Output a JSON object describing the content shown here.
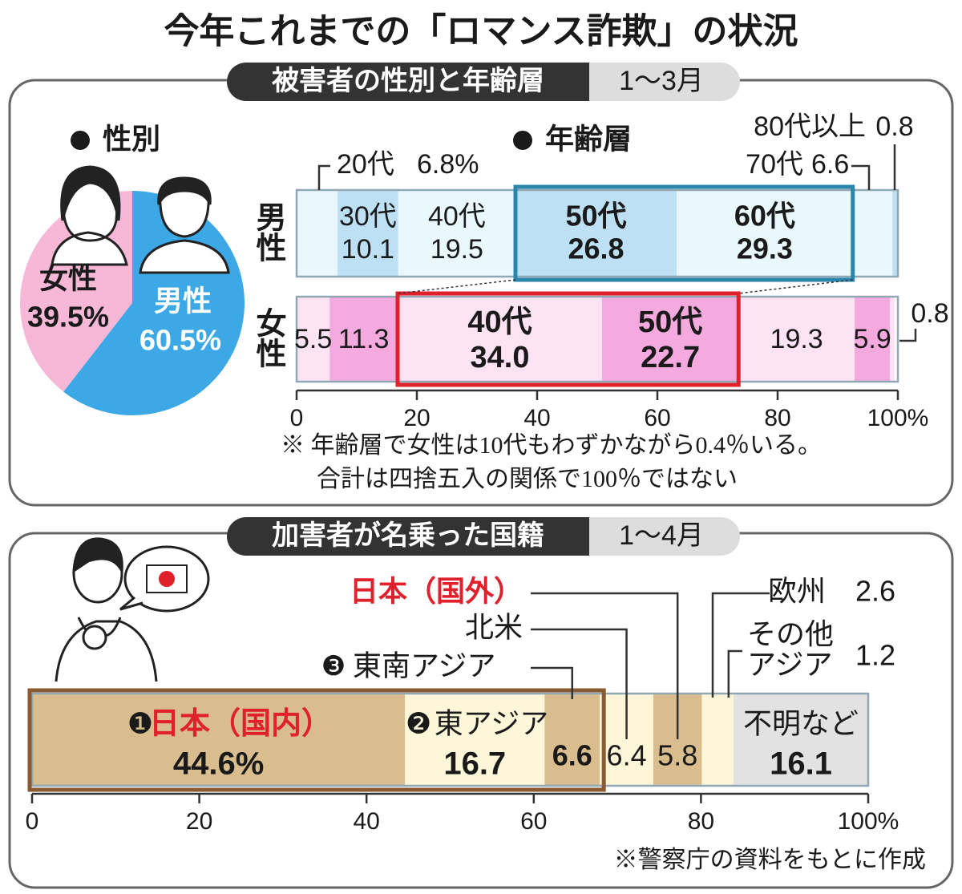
{
  "title": "今年これまでの「ロマンス詐欺」の状況",
  "chart_data": [
    {
      "type": "pie",
      "section_title": "被害者の性別と年齢層",
      "period": "1～3月",
      "subtitle": "性別",
      "categories": [
        "女性",
        "男性"
      ],
      "values": [
        39.5,
        60.5
      ],
      "value_labels": [
        "39.5%",
        "60.5%"
      ],
      "colors": [
        "#f6b8d6",
        "#3da8e6"
      ]
    },
    {
      "type": "stacked_bar",
      "subtitle": "年齢層",
      "categories": [
        "20代",
        "30代",
        "40代",
        "50代",
        "60代",
        "70代",
        "80代以上"
      ],
      "series": [
        {
          "name": "男性",
          "values": [
            6.8,
            10.1,
            19.5,
            26.8,
            29.3,
            6.6,
            0.8
          ],
          "value_labels": [
            "6.8%",
            "10.1",
            "19.5",
            "26.8",
            "29.3",
            "6.6",
            "0.8"
          ],
          "colors": [
            "#e9f8fc",
            "#bde0f5",
            "#e9f8fc",
            "#bde0f5",
            "#e9f8fc",
            "#e9f8fc",
            "#bde0f5"
          ]
        },
        {
          "name": "女性",
          "values": [
            5.5,
            11.3,
            34.0,
            22.7,
            19.3,
            5.9,
            0.8
          ],
          "value_labels": [
            "5.5",
            "11.3",
            "34.0",
            "22.7",
            "19.3",
            "5.9",
            "0.8"
          ],
          "colors": [
            "#fde3f4",
            "#f4a9df",
            "#fde3f4",
            "#f4a9df",
            "#fde3f4",
            "#f4a9df",
            "#fde3f4"
          ]
        }
      ],
      "xlim": [
        0,
        100
      ],
      "xticks": [
        0,
        20,
        40,
        60,
        80,
        {
          "value": 100,
          "label": "100%"
        }
      ],
      "note": [
        "※ 年齢層で女性は10代もわずかながら0.4％いる。",
        "合計は四捨五入の関係で100％ではない"
      ]
    },
    {
      "type": "stacked_bar",
      "section_title": "加害者が名乗った国籍",
      "period": "1～4月",
      "categories": [
        "日本（国内）",
        "東アジア",
        "東南アジア",
        "北米",
        "日本（国外）",
        "欧州",
        "その他\nアジア",
        "不明など"
      ],
      "rank_marks": [
        "❶",
        "❷",
        "❸",
        null,
        null,
        null,
        null,
        null
      ],
      "series": [
        {
          "values": [
            44.6,
            16.7,
            6.6,
            6.4,
            5.8,
            2.6,
            1.2,
            16.1
          ],
          "value_labels": [
            "44.6%",
            "16.7",
            "6.6",
            "6.4",
            "5.8",
            "2.6",
            "1.2",
            "16.1"
          ],
          "colors": [
            "#d9bd8f",
            "#fdf6d9",
            "#d9bd8f",
            "#fdf6d9",
            "#d9bd8f",
            "#fdf6d9",
            "#fdf6d9",
            "#e2e2e2"
          ],
          "label_colors": [
            "#e0202a",
            "#1a1a1a",
            "#1a1a1a",
            "#1a1a1a",
            "#e0202a",
            "#1a1a1a",
            "#1a1a1a",
            "#1a1a1a"
          ]
        }
      ],
      "xlim": [
        0,
        100
      ],
      "xticks": [
        0,
        20,
        40,
        60,
        80,
        {
          "value": 100,
          "label": "100%"
        }
      ],
      "source": "※警察庁の資料をもとに作成"
    }
  ]
}
